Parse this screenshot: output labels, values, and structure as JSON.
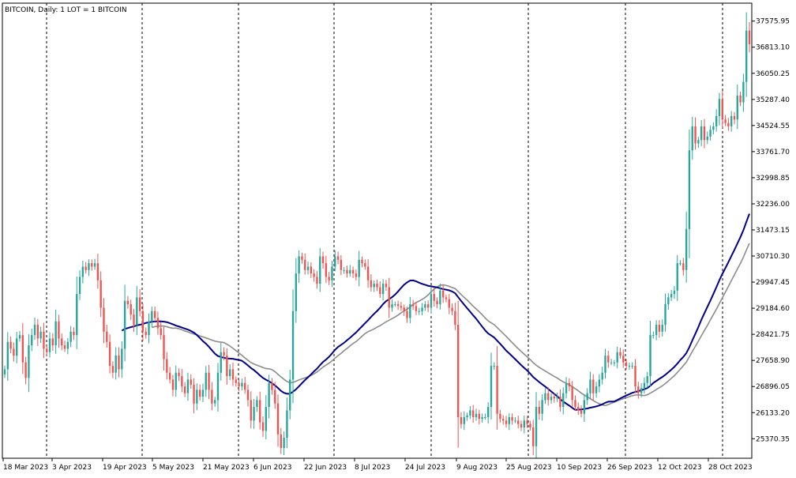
{
  "chart_data": {
    "type": "candlestick",
    "title": "BITCOIN, Daily:  1 LOT = 1 BITCOIN",
    "ylim": [
      24800,
      38100
    ],
    "y_ticks": [
      "37575.95",
      "36813.10",
      "36050.25",
      "35287.40",
      "34524.55",
      "33761.70",
      "32998.85",
      "32236.00",
      "31473.15",
      "30710.30",
      "29947.45",
      "29184.60",
      "28421.75",
      "27658.90",
      "26896.05",
      "26133.20",
      "25370.35"
    ],
    "x_tick_labels": [
      "18 Mar 2023",
      "3 Apr 2023",
      "19 Apr 2023",
      "5 May 2023",
      "21 May 2023",
      "6 Jun 2023",
      "22 Jun 2023",
      "8 Jul 2023",
      "24 Jul 2023",
      "9 Aug 2023",
      "25 Aug 2023",
      "10 Sep 2023",
      "26 Sep 2023",
      "12 Oct 2023",
      "28 Oct 2023"
    ],
    "grid": "vertical dashed",
    "colors": {
      "up": "#26a69a",
      "down": "#ef5350",
      "ma_fast": "#00008b",
      "ma_slow": "#8c8c8c",
      "axis": "#000000",
      "grid": "#000000"
    },
    "close": [
      27400,
      28200,
      28000,
      27800,
      28300,
      28400,
      27600,
      27150,
      28100,
      28400,
      28700,
      28300,
      28500,
      28000,
      27900,
      28300,
      28100,
      28800,
      28300,
      28100,
      28000,
      28200,
      28500,
      28400,
      29600,
      30100,
      30400,
      30300,
      30500,
      30400,
      30500,
      30000,
      29200,
      28500,
      28200,
      27500,
      27300,
      27800,
      27400,
      28000,
      29400,
      29300,
      29000,
      28700,
      29500,
      29100,
      28500,
      28400,
      28800,
      29100,
      28900,
      28600,
      28400,
      27700,
      27300,
      27100,
      26800,
      27300,
      27200,
      26900,
      26700,
      27100,
      26950,
      26400,
      26800,
      26600,
      26800,
      27300,
      26800,
      26400,
      26500,
      27300,
      27900,
      27800,
      27200,
      27400,
      27100,
      27000,
      26900,
      27000,
      26800,
      26500,
      25900,
      26300,
      26500,
      25850,
      25600,
      26300,
      27000,
      26800,
      26400,
      25500,
      25100,
      25400,
      26200,
      27100,
      29100,
      30200,
      30700,
      30600,
      30300,
      30400,
      30200,
      30100,
      29900,
      30700,
      30500,
      30100,
      30000,
      30400,
      30700,
      30600,
      30300,
      30300,
      30200,
      30300,
      30200,
      30100,
      30600,
      30500,
      30400,
      30000,
      29800,
      29900,
      29800,
      29600,
      29900,
      29800,
      29200,
      29300,
      29300,
      29250,
      29200,
      29100,
      28900,
      29300,
      29250,
      29100,
      29100,
      29200,
      29300,
      29200,
      29600,
      29400,
      29300,
      29700,
      29500,
      29450,
      29200,
      29100,
      28700,
      26000,
      25800,
      26000,
      26050,
      26200,
      26000,
      26100,
      25950,
      26000,
      26000,
      26300,
      27500,
      27500,
      26100,
      25950,
      25900,
      25800,
      26000,
      25900,
      25900,
      25800,
      25700,
      25900,
      25800,
      25700,
      25150,
      26300,
      26100,
      26500,
      26700,
      26500,
      26600,
      26550,
      26600,
      26300,
      26700,
      27000,
      26900,
      26500,
      26300,
      26200,
      26100,
      26500,
      26700,
      27100,
      26700,
      26900,
      27100,
      27300,
      27800,
      27600,
      27600,
      27600,
      27900,
      27800,
      27600,
      27500,
      27500,
      27500,
      26900,
      26700,
      26850,
      27000,
      27200,
      28400,
      28400,
      28700,
      28500,
      28700,
      29300,
      29500,
      29600,
      29700,
      30500,
      30500,
      30300,
      31500,
      33800,
      34500,
      34000,
      34100,
      34500,
      34100,
      34200,
      34400,
      34500,
      34800,
      35300,
      34700,
      34600,
      34500,
      34800,
      34700,
      35400,
      35200,
      35800,
      37300,
      36900
    ]
  }
}
